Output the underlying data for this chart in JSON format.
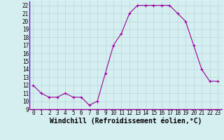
{
  "x": [
    0,
    1,
    2,
    3,
    4,
    5,
    6,
    7,
    8,
    9,
    10,
    11,
    12,
    13,
    14,
    15,
    16,
    17,
    18,
    19,
    20,
    21,
    22,
    23
  ],
  "y": [
    12,
    11,
    10.5,
    10.5,
    11,
    10.5,
    10.5,
    9.5,
    10,
    13.5,
    17,
    18.5,
    21,
    22,
    22,
    22,
    22,
    22,
    21,
    20,
    17,
    14,
    12.5,
    12.5
  ],
  "xlim": [
    -0.5,
    23.5
  ],
  "ylim": [
    9,
    22.5
  ],
  "yticks": [
    9,
    10,
    11,
    12,
    13,
    14,
    15,
    16,
    17,
    18,
    19,
    20,
    21,
    22
  ],
  "xticks": [
    0,
    1,
    2,
    3,
    4,
    5,
    6,
    7,
    8,
    9,
    10,
    11,
    12,
    13,
    14,
    15,
    16,
    17,
    18,
    19,
    20,
    21,
    22,
    23
  ],
  "xlabel": "Windchill (Refroidissement éolien,°C)",
  "line_color": "#990099",
  "marker": "+",
  "background_color": "#d5eef0",
  "grid_color": "#b8d8d8",
  "tick_label_fontsize": 5.5,
  "xlabel_fontsize": 7
}
